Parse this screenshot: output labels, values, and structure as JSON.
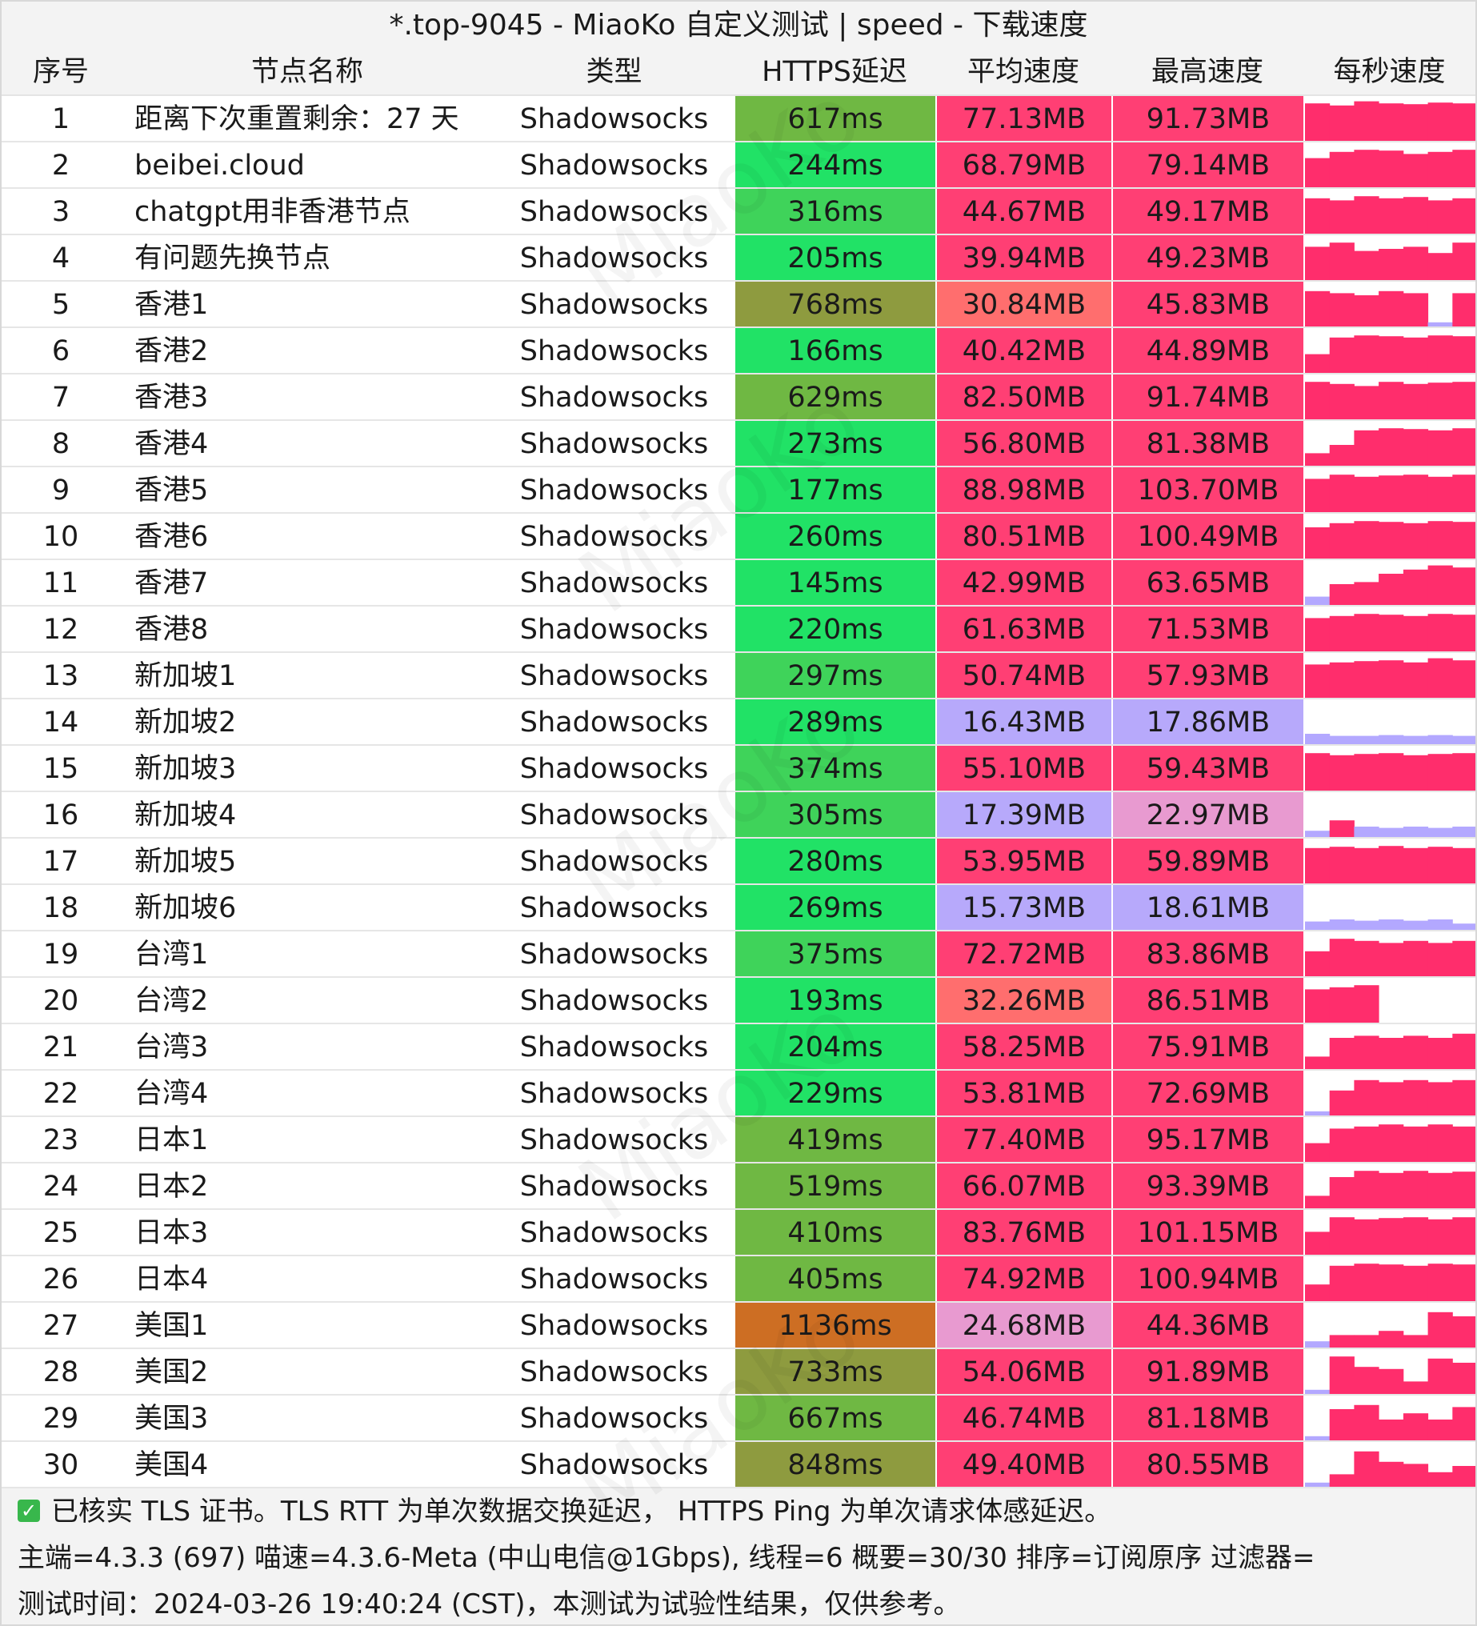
{
  "window": {
    "title": "*.top-9045 - MiaoKo 自定义测试 | speed - 下载速度"
  },
  "columns": {
    "index": "序号",
    "name": "节点名称",
    "type": "类型",
    "latency": "HTTPS延迟",
    "avg_speed": "平均速度",
    "max_speed": "最高速度",
    "per_second": "每秒速度"
  },
  "watermark": "MiaoKo",
  "colors": {
    "latency_green": "#21e266",
    "latency_olive": "#8e9b3f",
    "latency_orange": "#cd6e23",
    "speed_pink": "#ff3f74",
    "speed_lavender": "#b7a9fb",
    "speed_salmon": "#ff6e6e",
    "speed_mauve": "#e89ad0",
    "sparkline_pink": "#ff2d6c",
    "sparkline_lavender": "#b3a8ff"
  },
  "rows": [
    {
      "idx": "1",
      "name": "距离下次重置剩余：27 天",
      "type": "Shadowsocks",
      "latency": "617ms",
      "lat_ms": 617,
      "avg": "77.13MB",
      "max": "91.73MB",
      "avg_v": 77.13,
      "max_v": 91.73,
      "spark": [
        0.9,
        0.85,
        0.95,
        0.9,
        0.88,
        0.92,
        0.9
      ]
    },
    {
      "idx": "2",
      "name": "beibei.cloud",
      "type": "Shadowsocks",
      "latency": "244ms",
      "lat_ms": 244,
      "avg": "68.79MB",
      "max": "79.14MB",
      "avg_v": 68.79,
      "max_v": 79.14,
      "spark": [
        0.7,
        0.85,
        0.9,
        0.88,
        0.8,
        0.85,
        0.9
      ]
    },
    {
      "idx": "3",
      "name": "chatgpt用非香港节点",
      "type": "Shadowsocks",
      "latency": "316ms",
      "lat_ms": 316,
      "avg": "44.67MB",
      "max": "49.17MB",
      "avg_v": 44.67,
      "max_v": 49.17,
      "spark": [
        0.85,
        0.8,
        0.9,
        0.85,
        0.88,
        0.8,
        0.85
      ]
    },
    {
      "idx": "4",
      "name": "有问题先换节点",
      "type": "Shadowsocks",
      "latency": "205ms",
      "lat_ms": 205,
      "avg": "39.94MB",
      "max": "49.23MB",
      "avg_v": 39.94,
      "max_v": 49.23,
      "spark": [
        0.8,
        0.9,
        0.7,
        0.75,
        0.8,
        0.65,
        0.9
      ]
    },
    {
      "idx": "5",
      "name": "香港1",
      "type": "Shadowsocks",
      "latency": "768ms",
      "lat_ms": 768,
      "avg": "30.84MB",
      "max": "45.83MB",
      "avg_v": 30.84,
      "max_v": 45.83,
      "spark": [
        0.85,
        0.8,
        0.75,
        0.85,
        0.8,
        0.1,
        0.8
      ]
    },
    {
      "idx": "6",
      "name": "香港2",
      "type": "Shadowsocks",
      "latency": "166ms",
      "lat_ms": 166,
      "avg": "40.42MB",
      "max": "44.89MB",
      "avg_v": 40.42,
      "max_v": 44.89,
      "spark": [
        0.45,
        0.85,
        0.9,
        0.88,
        0.85,
        0.9,
        0.88
      ]
    },
    {
      "idx": "7",
      "name": "香港3",
      "type": "Shadowsocks",
      "latency": "629ms",
      "lat_ms": 629,
      "avg": "82.50MB",
      "max": "91.74MB",
      "avg_v": 82.5,
      "max_v": 91.74,
      "spark": [
        0.9,
        0.85,
        0.8,
        0.9,
        0.85,
        0.88,
        0.9
      ]
    },
    {
      "idx": "8",
      "name": "香港4",
      "type": "Shadowsocks",
      "latency": "273ms",
      "lat_ms": 273,
      "avg": "56.80MB",
      "max": "81.38MB",
      "avg_v": 56.8,
      "max_v": 81.38,
      "spark": [
        0.3,
        0.5,
        0.85,
        0.9,
        0.88,
        0.85,
        0.9
      ]
    },
    {
      "idx": "9",
      "name": "香港5",
      "type": "Shadowsocks",
      "latency": "177ms",
      "lat_ms": 177,
      "avg": "88.98MB",
      "max": "103.70MB",
      "avg_v": 88.98,
      "max_v": 103.7,
      "spark": [
        0.8,
        0.9,
        0.85,
        0.88,
        0.9,
        0.85,
        0.9
      ]
    },
    {
      "idx": "10",
      "name": "香港6",
      "type": "Shadowsocks",
      "latency": "260ms",
      "lat_ms": 260,
      "avg": "80.51MB",
      "max": "100.49MB",
      "avg_v": 80.51,
      "max_v": 100.49,
      "spark": [
        0.75,
        0.85,
        0.9,
        0.88,
        0.85,
        0.9,
        0.88
      ]
    },
    {
      "idx": "11",
      "name": "香港7",
      "type": "Shadowsocks",
      "latency": "145ms",
      "lat_ms": 145,
      "avg": "42.99MB",
      "max": "63.65MB",
      "avg_v": 42.99,
      "max_v": 63.65,
      "spark": [
        0.2,
        0.5,
        0.55,
        0.75,
        0.85,
        0.95,
        0.9
      ]
    },
    {
      "idx": "12",
      "name": "香港8",
      "type": "Shadowsocks",
      "latency": "220ms",
      "lat_ms": 220,
      "avg": "61.63MB",
      "max": "71.53MB",
      "avg_v": 61.63,
      "max_v": 71.53,
      "spark": [
        0.8,
        0.85,
        0.9,
        0.88,
        0.85,
        0.9,
        0.88
      ]
    },
    {
      "idx": "13",
      "name": "新加坡1",
      "type": "Shadowsocks",
      "latency": "297ms",
      "lat_ms": 297,
      "avg": "50.74MB",
      "max": "57.93MB",
      "avg_v": 50.74,
      "max_v": 57.93,
      "spark": [
        0.8,
        0.85,
        0.88,
        0.9,
        0.85,
        0.95,
        0.9
      ]
    },
    {
      "idx": "14",
      "name": "新加坡2",
      "type": "Shadowsocks",
      "latency": "289ms",
      "lat_ms": 289,
      "avg": "16.43MB",
      "max": "17.86MB",
      "avg_v": 16.43,
      "max_v": 17.86,
      "spark": [
        0.25,
        0.2,
        0.2,
        0.22,
        0.2,
        0.22,
        0.2
      ]
    },
    {
      "idx": "15",
      "name": "新加坡3",
      "type": "Shadowsocks",
      "latency": "374ms",
      "lat_ms": 374,
      "avg": "55.10MB",
      "max": "59.43MB",
      "avg_v": 55.1,
      "max_v": 59.43,
      "spark": [
        0.9,
        0.85,
        0.88,
        0.9,
        0.85,
        0.88,
        0.9
      ]
    },
    {
      "idx": "16",
      "name": "新加坡4",
      "type": "Shadowsocks",
      "latency": "305ms",
      "lat_ms": 305,
      "avg": "17.39MB",
      "max": "22.97MB",
      "avg_v": 17.39,
      "max_v": 22.97,
      "spark": [
        0.15,
        0.4,
        0.25,
        0.22,
        0.25,
        0.22,
        0.25
      ]
    },
    {
      "idx": "17",
      "name": "新加坡5",
      "type": "Shadowsocks",
      "latency": "280ms",
      "lat_ms": 280,
      "avg": "53.95MB",
      "max": "59.89MB",
      "avg_v": 53.95,
      "max_v": 59.89,
      "spark": [
        0.85,
        0.88,
        0.85,
        0.9,
        0.85,
        0.88,
        0.85
      ]
    },
    {
      "idx": "18",
      "name": "新加坡6",
      "type": "Shadowsocks",
      "latency": "269ms",
      "lat_ms": 269,
      "avg": "15.73MB",
      "max": "18.61MB",
      "avg_v": 15.73,
      "max_v": 18.61,
      "spark": [
        0.2,
        0.25,
        0.22,
        0.25,
        0.22,
        0.25,
        0.15
      ]
    },
    {
      "idx": "19",
      "name": "台湾1",
      "type": "Shadowsocks",
      "latency": "375ms",
      "lat_ms": 375,
      "avg": "72.72MB",
      "max": "83.86MB",
      "avg_v": 72.72,
      "max_v": 83.86,
      "spark": [
        0.6,
        0.9,
        0.85,
        0.8,
        0.85,
        0.8,
        0.85
      ]
    },
    {
      "idx": "20",
      "name": "台湾2",
      "type": "Shadowsocks",
      "latency": "193ms",
      "lat_ms": 193,
      "avg": "32.26MB",
      "max": "86.51MB",
      "avg_v": 32.26,
      "max_v": 86.51,
      "spark": [
        0.8,
        0.85,
        0.9,
        0.0,
        0.0,
        0.0,
        0.0
      ]
    },
    {
      "idx": "21",
      "name": "台湾3",
      "type": "Shadowsocks",
      "latency": "204ms",
      "lat_ms": 204,
      "avg": "58.25MB",
      "max": "75.91MB",
      "avg_v": 58.25,
      "max_v": 75.91,
      "spark": [
        0.3,
        0.75,
        0.8,
        0.75,
        0.8,
        0.75,
        0.85
      ]
    },
    {
      "idx": "22",
      "name": "台湾4",
      "type": "Shadowsocks",
      "latency": "229ms",
      "lat_ms": 229,
      "avg": "53.81MB",
      "max": "72.69MB",
      "avg_v": 53.81,
      "max_v": 72.69,
      "spark": [
        0.1,
        0.6,
        0.85,
        0.8,
        0.85,
        0.8,
        0.85
      ]
    },
    {
      "idx": "23",
      "name": "日本1",
      "type": "Shadowsocks",
      "latency": "419ms",
      "lat_ms": 419,
      "avg": "77.40MB",
      "max": "95.17MB",
      "avg_v": 77.4,
      "max_v": 95.17,
      "spark": [
        0.45,
        0.8,
        0.85,
        0.9,
        0.85,
        0.9,
        0.85
      ]
    },
    {
      "idx": "24",
      "name": "日本2",
      "type": "Shadowsocks",
      "latency": "519ms",
      "lat_ms": 519,
      "avg": "66.07MB",
      "max": "93.39MB",
      "avg_v": 66.07,
      "max_v": 93.39,
      "spark": [
        0.3,
        0.75,
        0.9,
        0.85,
        0.9,
        0.85,
        0.88
      ]
    },
    {
      "idx": "25",
      "name": "日本3",
      "type": "Shadowsocks",
      "latency": "410ms",
      "lat_ms": 410,
      "avg": "83.76MB",
      "max": "101.15MB",
      "avg_v": 83.76,
      "max_v": 101.15,
      "spark": [
        0.55,
        0.9,
        0.85,
        0.88,
        0.9,
        0.85,
        0.9
      ]
    },
    {
      "idx": "26",
      "name": "日本4",
      "type": "Shadowsocks",
      "latency": "405ms",
      "lat_ms": 405,
      "avg": "74.92MB",
      "max": "100.94MB",
      "avg_v": 74.92,
      "max_v": 100.94,
      "spark": [
        0.4,
        0.85,
        0.9,
        0.88,
        0.85,
        0.9,
        0.88
      ]
    },
    {
      "idx": "27",
      "name": "美国1",
      "type": "Shadowsocks",
      "latency": "1136ms",
      "lat_ms": 1136,
      "avg": "24.68MB",
      "max": "44.36MB",
      "avg_v": 24.68,
      "max_v": 44.36,
      "spark": [
        0.15,
        0.3,
        0.3,
        0.4,
        0.3,
        0.85,
        0.75
      ]
    },
    {
      "idx": "28",
      "name": "美国2",
      "type": "Shadowsocks",
      "latency": "733ms",
      "lat_ms": 733,
      "avg": "54.06MB",
      "max": "91.89MB",
      "avg_v": 54.06,
      "max_v": 91.89,
      "spark": [
        0.1,
        0.9,
        0.65,
        0.6,
        0.3,
        0.85,
        0.75
      ]
    },
    {
      "idx": "29",
      "name": "美国3",
      "type": "Shadowsocks",
      "latency": "667ms",
      "lat_ms": 667,
      "avg": "46.74MB",
      "max": "81.18MB",
      "avg_v": 46.74,
      "max_v": 81.18,
      "spark": [
        0.1,
        0.75,
        0.85,
        0.5,
        0.65,
        0.5,
        0.8
      ]
    },
    {
      "idx": "30",
      "name": "美国4",
      "type": "Shadowsocks",
      "latency": "848ms",
      "lat_ms": 848,
      "avg": "49.40MB",
      "max": "80.55MB",
      "avg_v": 49.4,
      "max_v": 80.55,
      "spark": [
        0.1,
        0.3,
        0.85,
        0.6,
        0.55,
        0.35,
        0.5
      ]
    }
  ],
  "footer": {
    "tls_note": "已核实 TLS 证书。TLS RTT 为单次数据交换延迟， HTTPS Ping 为单次请求体感延迟。",
    "meta": "主端=4.3.3 (697) 喵速=4.3.6-Meta (中山电信@1Gbps), 线程=6 概要=30/30 排序=订阅原序 过滤器=",
    "test_time": "测试时间：2024-03-26 19:40:24 (CST)，本测试为试验性结果，仅供参考。"
  }
}
